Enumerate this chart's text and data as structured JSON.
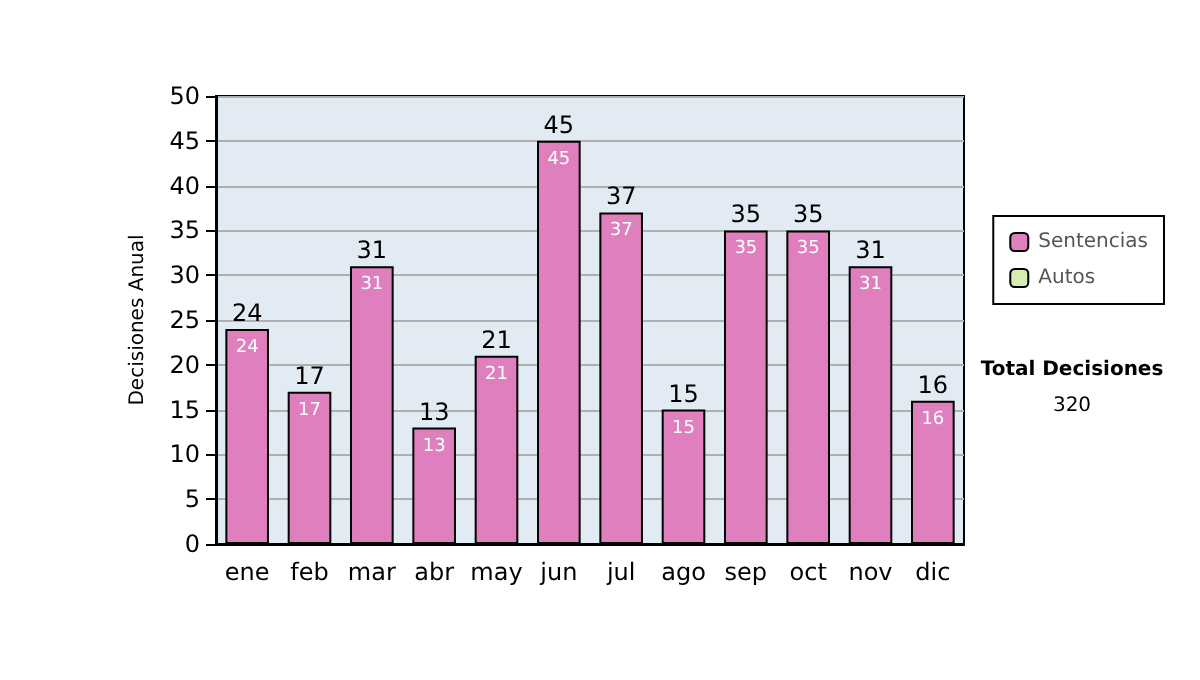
{
  "chart_data": {
    "type": "bar",
    "ylabel": "Decisiones Anual",
    "categories": [
      "ene",
      "feb",
      "mar",
      "abr",
      "may",
      "jun",
      "jul",
      "ago",
      "sep",
      "oct",
      "nov",
      "dic"
    ],
    "series": [
      {
        "name": "Sentencias",
        "color": "#e07fbd",
        "values": [
          24,
          17,
          31,
          13,
          21,
          45,
          37,
          15,
          35,
          35,
          31,
          16
        ],
        "value_labels": [
          "24",
          "17",
          "31",
          "13",
          "21",
          "45",
          "37",
          "15",
          "35",
          "35",
          "31",
          "16"
        ]
      },
      {
        "name": "Autos",
        "color": "#d9ecb0",
        "values": [
          null,
          null,
          null,
          null,
          null,
          null,
          null,
          null,
          null,
          null,
          null,
          null
        ]
      }
    ],
    "stacked": true,
    "totals": [
      "24",
      "17",
      "31",
      "13",
      "21",
      "45",
      "37",
      "15",
      "35",
      "35",
      "31",
      "16"
    ],
    "ylim": [
      0,
      50
    ],
    "yticks": [
      0,
      5,
      10,
      15,
      20,
      25,
      30,
      35,
      40,
      45,
      50
    ],
    "grid": "y",
    "legend": "right",
    "annotations": [
      "Total Decisiones",
      "320"
    ]
  }
}
